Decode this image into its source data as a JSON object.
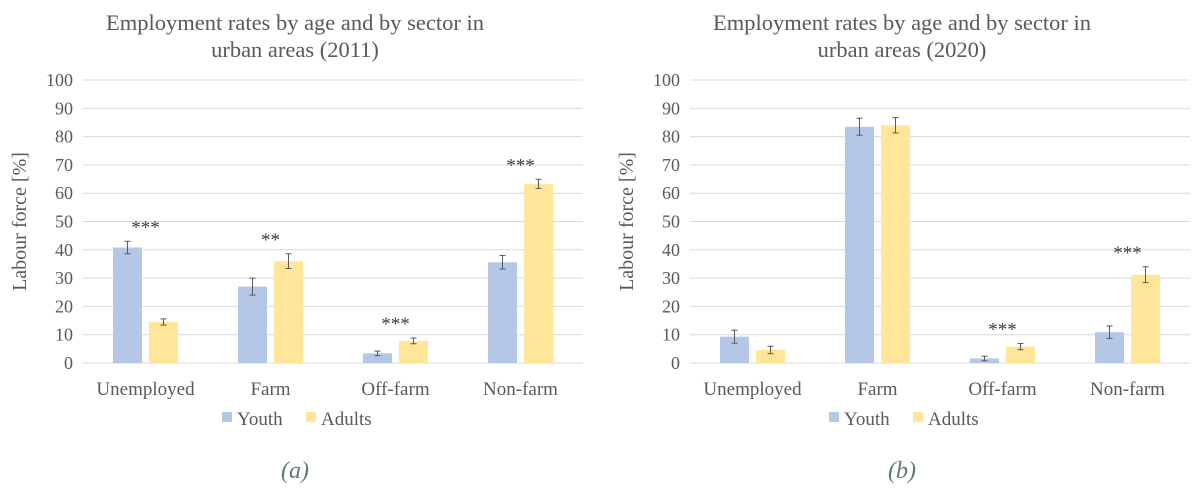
{
  "colors": {
    "youth": "#b4c7e7",
    "adults": "#ffe699"
  },
  "panels": [
    {
      "caption": "(a)",
      "chart_data": {
        "type": "bar",
        "title": "Employment rates by age and by sector in urban areas (2011)",
        "title_lines": [
          "Employment rates by age and by sector in",
          "urban areas (2011)"
        ],
        "ylabel": "Labour force [%]",
        "ylim": [
          0,
          100
        ],
        "yticks": [
          0,
          10,
          20,
          30,
          40,
          50,
          60,
          70,
          80,
          90,
          100
        ],
        "categories": [
          "Unemployed",
          "Farm",
          "Off-farm",
          "Non-farm"
        ],
        "series": [
          {
            "name": "Youth",
            "values": [
              40.8,
              27.0,
              3.4,
              35.6
            ],
            "errors": [
              2.2,
              3.0,
              0.8,
              2.4
            ]
          },
          {
            "name": "Adults",
            "values": [
              14.5,
              36.0,
              7.8,
              63.3
            ],
            "errors": [
              1.1,
              2.6,
              1.0,
              1.6
            ]
          }
        ],
        "significance": [
          "***",
          "**",
          "***",
          "***"
        ],
        "grid": true,
        "legend": "bottom"
      }
    },
    {
      "caption": "(b)",
      "chart_data": {
        "type": "bar",
        "title": "Employment rates by age and by sector in urban areas (2020)",
        "title_lines": [
          "Employment rates by age and by sector in",
          "urban areas (2020)"
        ],
        "ylabel": "Labour force [%]",
        "ylim": [
          0,
          100
        ],
        "yticks": [
          0,
          10,
          20,
          30,
          40,
          50,
          60,
          70,
          80,
          90,
          100
        ],
        "categories": [
          "Unemployed",
          "Farm",
          "Off-farm",
          "Non-farm"
        ],
        "series": [
          {
            "name": "Youth",
            "values": [
              9.3,
              83.5,
              1.6,
              10.9
            ],
            "errors": [
              2.3,
              3.0,
              0.8,
              2.2
            ]
          },
          {
            "name": "Adults",
            "values": [
              4.6,
              84.0,
              5.8,
              31.2
            ],
            "errors": [
              1.3,
              2.7,
              1.1,
              2.8
            ]
          }
        ],
        "significance": [
          "",
          "",
          "***",
          "***"
        ],
        "grid": true,
        "legend": "bottom"
      }
    }
  ]
}
